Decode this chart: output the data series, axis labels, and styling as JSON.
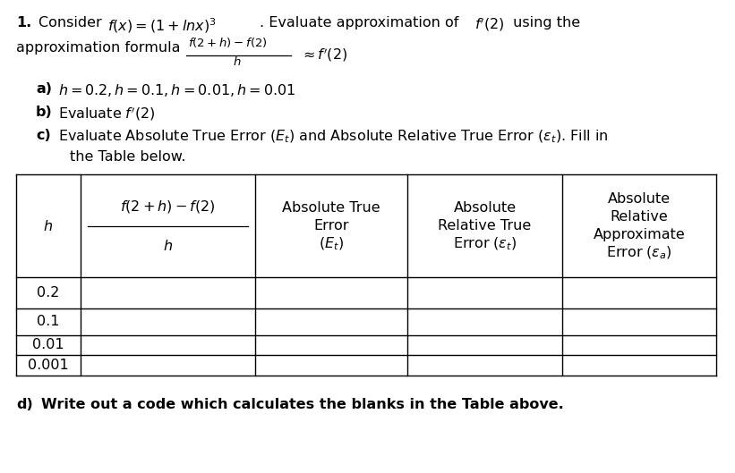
{
  "background_color": "#ffffff",
  "text_color": "#000000",
  "figsize": [
    8.21,
    5.29
  ],
  "dpi": 100,
  "row_values": [
    "0.2",
    "0.1",
    "0.01",
    "0.001"
  ],
  "font_family": "DejaVu Sans",
  "fs_main": 11.5,
  "fs_small": 9.5
}
